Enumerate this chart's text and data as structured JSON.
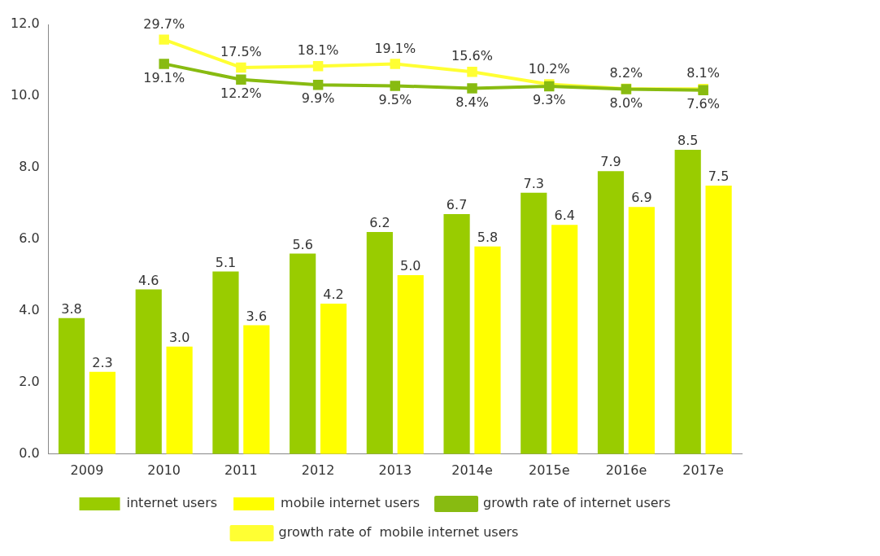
{
  "chart_data": {
    "type": "bar",
    "categories": [
      "2009",
      "2010",
      "2011",
      "2012",
      "2013",
      "2014e",
      "2015e",
      "2016e",
      "2017e"
    ],
    "series": [
      {
        "name": "internet users",
        "color": "#99cc00",
        "values": [
          3.8,
          4.6,
          5.1,
          5.6,
          6.2,
          6.7,
          7.3,
          7.9,
          8.5
        ],
        "value_labels": [
          "3.8",
          "4.6",
          "5.1",
          "5.6",
          "6.2",
          "6.7",
          "7.3",
          "7.9",
          "8.5"
        ]
      },
      {
        "name": "mobile internet users",
        "color": "#ffff00",
        "values": [
          2.3,
          3.0,
          3.6,
          4.2,
          5.0,
          5.8,
          6.4,
          6.9,
          7.5
        ],
        "value_labels": [
          "2.3",
          "3.0",
          "3.6",
          "4.2",
          "5.0",
          "5.8",
          "6.4",
          "6.9",
          "7.5"
        ]
      },
      {
        "name": "growth rate of internet users",
        "type": "line",
        "axis": "y2",
        "color": "#88bb11",
        "values": [
          null,
          19.1,
          12.2,
          9.9,
          9.5,
          8.4,
          9.3,
          8.0,
          7.6
        ],
        "value_labels": [
          null,
          "19.1%",
          "12.2%",
          "9.9%",
          "9.5%",
          "8.4%",
          "9.3%",
          "8.0%",
          "7.6%"
        ]
      },
      {
        "name": "growth rate of  mobile internet users",
        "type": "line",
        "axis": "y2",
        "color": "#ffff33",
        "values": [
          null,
          29.7,
          17.5,
          18.1,
          19.1,
          15.6,
          10.2,
          8.2,
          8.1
        ],
        "value_labels": [
          null,
          "29.7%",
          "17.5%",
          "18.1%",
          "19.1%",
          "15.6%",
          "10.2%",
          "8.2%",
          "8.1%"
        ]
      }
    ],
    "ylim": [
      0,
      12
    ],
    "yticks": [
      {
        "value": 0,
        "label": "0.0"
      },
      {
        "value": 2,
        "label": "2.0"
      },
      {
        "value": 4,
        "label": "4.0"
      },
      {
        "value": 6,
        "label": "6.0"
      },
      {
        "value": 8,
        "label": "8.0"
      },
      {
        "value": 10,
        "label": "10.0"
      },
      {
        "value": 12,
        "label": "12.0"
      }
    ],
    "grid": false,
    "legend": "bottom",
    "marker": "square",
    "line_style": "solid"
  }
}
